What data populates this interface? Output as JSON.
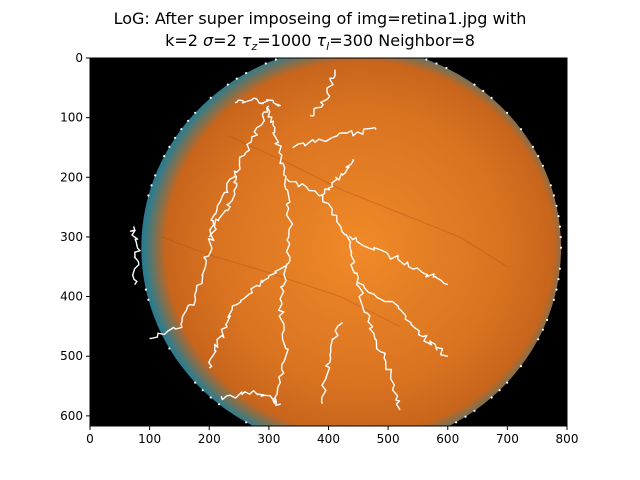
{
  "chart_data": {
    "type": "heatmap",
    "title": {
      "line1": "LoG: After super imposeing of img=retina1.jpg with",
      "line2": {
        "k": "k=2",
        "sigma_sym": "σ",
        "sigma_val": "=2",
        "tau_sym": "τ",
        "tau_z_sub": "z",
        "tau_z_val": "=1000",
        "tau_l_sub": "l",
        "tau_l_val": "=300",
        "neighbor": "Neighbor=8"
      }
    },
    "image_description": "fundus retina photograph with detected vessel edges overlaid in white",
    "xlim": [
      0,
      800
    ],
    "ylim": [
      617,
      0
    ],
    "x_ticks": [
      0,
      100,
      200,
      300,
      400,
      500,
      600,
      700,
      800
    ],
    "y_ticks": [
      0,
      100,
      200,
      300,
      400,
      500,
      600
    ],
    "x_tick_labels": [
      "0",
      "100",
      "200",
      "300",
      "400",
      "500",
      "600",
      "700",
      "800"
    ],
    "y_tick_labels": [
      "0",
      "100",
      "200",
      "300",
      "400",
      "500",
      "600"
    ],
    "overlay_edges": [
      [
        [
          300,
          80
        ],
        [
          310,
          130
        ],
        [
          330,
          200
        ],
        [
          335,
          280
        ],
        [
          330,
          350
        ],
        [
          320,
          420
        ],
        [
          330,
          500
        ],
        [
          310,
          580
        ]
      ],
      [
        [
          330,
          200
        ],
        [
          390,
          230
        ],
        [
          430,
          300
        ],
        [
          450,
          380
        ],
        [
          470,
          450
        ],
        [
          500,
          520
        ],
        [
          520,
          590
        ]
      ],
      [
        [
          300,
          80
        ],
        [
          270,
          140
        ],
        [
          240,
          200
        ],
        [
          210,
          260
        ],
        [
          200,
          320
        ],
        [
          180,
          400
        ],
        [
          150,
          450
        ],
        [
          100,
          470
        ]
      ],
      [
        [
          330,
          350
        ],
        [
          280,
          380
        ],
        [
          240,
          420
        ],
        [
          220,
          470
        ],
        [
          200,
          520
        ]
      ],
      [
        [
          430,
          300
        ],
        [
          500,
          330
        ],
        [
          560,
          360
        ],
        [
          600,
          380
        ]
      ],
      [
        [
          450,
          380
        ],
        [
          520,
          420
        ],
        [
          560,
          470
        ],
        [
          600,
          500
        ]
      ],
      [
        [
          340,
          150
        ],
        [
          420,
          130
        ],
        [
          480,
          120
        ]
      ],
      [
        [
          370,
          100
        ],
        [
          400,
          60
        ],
        [
          410,
          20
        ]
      ],
      [
        [
          240,
          75
        ],
        [
          280,
          70
        ],
        [
          320,
          80
        ]
      ],
      [
        [
          390,
          230
        ],
        [
          420,
          200
        ],
        [
          440,
          170
        ]
      ],
      [
        [
          220,
          570
        ],
        [
          280,
          560
        ],
        [
          320,
          580
        ]
      ],
      [
        [
          420,
          440
        ],
        [
          400,
          500
        ],
        [
          390,
          580
        ]
      ],
      [
        [
          250,
          200
        ],
        [
          230,
          250
        ],
        [
          200,
          300
        ]
      ],
      [
        [
          70,
          280
        ],
        [
          80,
          320
        ],
        [
          75,
          380
        ]
      ]
    ],
    "colors": {
      "frame": "#000000",
      "background": "#000000",
      "fundus_center": "#f08a28",
      "fundus_mid": "#d97321",
      "fundus_edge": "#c8651c",
      "rim_teal": "#2f7c8c",
      "rim_blue": "#1f6590",
      "edge_overlay": "#ffffff",
      "vessel": "#b5471a"
    }
  }
}
